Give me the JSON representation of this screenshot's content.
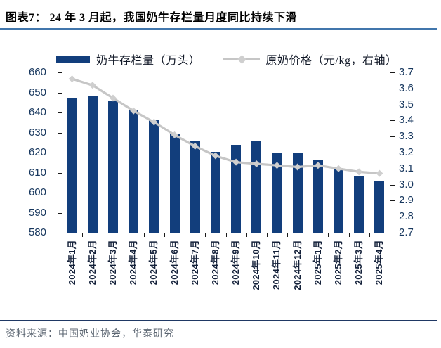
{
  "header": {
    "title": "图表7： 24 年 3 月起，我国奶牛存栏量月度同比持续下滑"
  },
  "legend": {
    "items": [
      {
        "label": "奶牛存栏量（万头）",
        "type": "bar"
      },
      {
        "label": "原奶价格（元/kg，右轴）",
        "type": "line"
      }
    ]
  },
  "footer": {
    "source": "资料来源：中国奶业协会，华泰研究"
  },
  "colors": {
    "bar": "#123e7c",
    "line": "#c6c6c6",
    "marker": "#cfcfcf",
    "title_underline": "#4176ac",
    "footer_rule": "#1f3864",
    "axis_text": "#17375e"
  },
  "chart_data": {
    "type": "bar",
    "title": "24 年 3 月起，我国奶牛存栏量月度同比持续下滑",
    "categories": [
      "2024年1月",
      "2024年2月",
      "2024年3月",
      "2024年4月",
      "2024年5月",
      "2024年6月",
      "2024年7月",
      "2024年8月",
      "2024年9月",
      "2024年10月",
      "2024年11月",
      "2024年12月",
      "2025年1月",
      "2025年2月",
      "2025年3月",
      "2025年4月"
    ],
    "series": [
      {
        "name": "奶牛存栏量（万头）",
        "type": "bar",
        "axis": "left",
        "values": [
          647,
          648.5,
          646,
          641.5,
          636,
          629,
          625.5,
          620.5,
          624,
          625.5,
          620,
          619.5,
          616,
          611.5,
          608,
          605.5
        ]
      },
      {
        "name": "原奶价格（元/kg，右轴）",
        "type": "line",
        "axis": "right",
        "values": [
          3.66,
          3.62,
          3.54,
          3.46,
          3.39,
          3.31,
          3.24,
          3.18,
          3.14,
          3.13,
          3.12,
          3.11,
          3.12,
          3.1,
          3.08,
          3.07
        ]
      }
    ],
    "left_axis": {
      "label": "奶牛存栏量（万头）",
      "min": 580,
      "max": 660,
      "step": 10,
      "ticks": [
        660,
        650,
        640,
        630,
        620,
        610,
        600,
        590,
        580
      ]
    },
    "right_axis": {
      "label": "原奶价格（元/kg）",
      "min": 2.7,
      "max": 3.7,
      "step": 0.1,
      "ticks": [
        3.7,
        3.6,
        3.5,
        3.4,
        3.3,
        3.2,
        3.1,
        3.0,
        2.9,
        2.8,
        2.7
      ]
    },
    "grid": false,
    "legend_position": "top"
  }
}
